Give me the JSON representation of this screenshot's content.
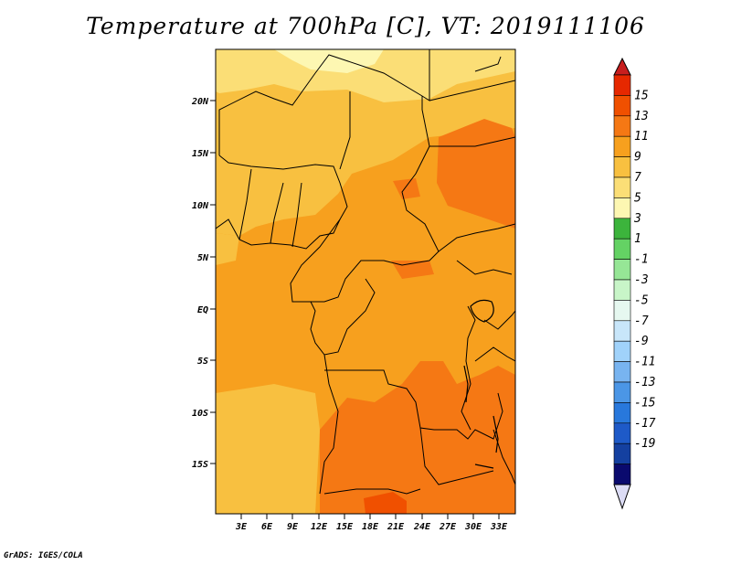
{
  "title": "Temperature at 700hPa [C], VT: 2019111106",
  "credit": "GrADS: IGES/COLA",
  "map": {
    "lat_labels": [
      "20N",
      "15N",
      "10N",
      "5N",
      "EQ",
      "5S",
      "10S",
      "15S"
    ],
    "lon_labels": [
      "3E",
      "6E",
      "9E",
      "12E",
      "15E",
      "18E",
      "21E",
      "24E",
      "27E",
      "30E",
      "33E"
    ]
  },
  "colorbar": {
    "labels": [
      "15",
      "13",
      "11",
      "9",
      "7",
      "5",
      "3",
      "1",
      "-1",
      "-3",
      "-5",
      "-7",
      "-9",
      "-11",
      "-13",
      "-15",
      "-17",
      "-19"
    ],
    "colors": [
      "#e62800",
      "#f05000",
      "#f57814",
      "#f7a01e",
      "#f8c040",
      "#fbde76",
      "#fdf7b2",
      "#3cb43c",
      "#64d264",
      "#96e696",
      "#c8f5c8",
      "#e6f8f0",
      "#c8e6fa",
      "#a0d2fa",
      "#78b4f0",
      "#4b96e6",
      "#2878dc",
      "#1e5ac8",
      "#1440a0",
      "#0a0a6e"
    ],
    "upper_arrow_color": "#c81e1e",
    "lower_arrow_color": "#dcdcf5"
  }
}
